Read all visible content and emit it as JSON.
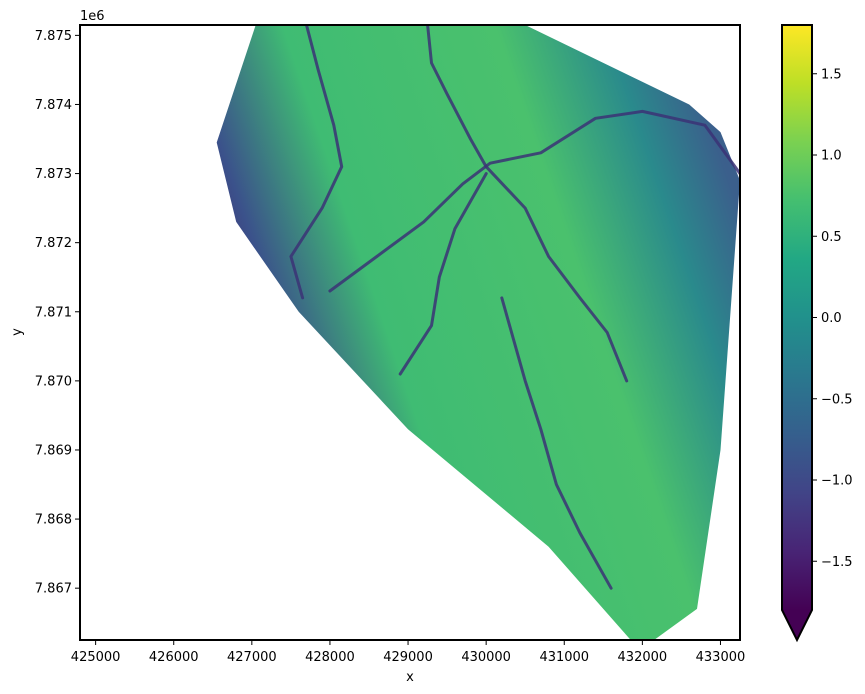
{
  "chart_data": {
    "type": "heatmap",
    "title": "",
    "xlabel": "x",
    "ylabel": "y",
    "y_offset_label": "1e6",
    "xlim": [
      424800,
      433250
    ],
    "ylim": [
      7866250,
      7875150
    ],
    "x_ticks": [
      425000,
      426000,
      427000,
      428000,
      429000,
      430000,
      431000,
      432000,
      433000
    ],
    "x_tick_labels": [
      "425000",
      "426000",
      "427000",
      "428000",
      "429000",
      "430000",
      "431000",
      "432000",
      "433000"
    ],
    "y_ticks": [
      7867000,
      7868000,
      7869000,
      7870000,
      7871000,
      7872000,
      7873000,
      7874000,
      7875000
    ],
    "y_tick_labels": [
      "7.867",
      "7.868",
      "7.869",
      "7.870",
      "7.871",
      "7.872",
      "7.873",
      "7.874",
      "7.875"
    ],
    "colorbar": {
      "colormap": "viridis",
      "extend": "min",
      "vmin": -1.8,
      "vmax": 1.8,
      "ticks": [
        -1.5,
        -1.0,
        -0.5,
        0.0,
        0.5,
        1.0,
        1.5
      ],
      "tick_labels": [
        "−1.5",
        "−1.0",
        "−0.5",
        "0.0",
        "0.5",
        "1.0",
        "1.5"
      ]
    },
    "data_footprint": [
      [
        427050,
        7875150
      ],
      [
        426550,
        7873450
      ],
      [
        426800,
        7872300
      ],
      [
        427600,
        7871000
      ],
      [
        429000,
        7869300
      ],
      [
        430800,
        7867600
      ],
      [
        431850,
        7866250
      ],
      [
        432150,
        7866250
      ],
      [
        432700,
        7866700
      ],
      [
        433000,
        7869000
      ],
      [
        433250,
        7872900
      ],
      [
        433000,
        7873600
      ],
      [
        432600,
        7874000
      ],
      [
        430500,
        7875150
      ]
    ],
    "channels": [
      [
        [
          427700,
          7875150
        ],
        [
          427850,
          7874500
        ],
        [
          428050,
          7873700
        ],
        [
          428150,
          7873100
        ],
        [
          427900,
          7872500
        ],
        [
          427500,
          7871800
        ],
        [
          427650,
          7871200
        ]
      ],
      [
        [
          429250,
          7875150
        ],
        [
          429300,
          7874600
        ],
        [
          429500,
          7874150
        ],
        [
          429800,
          7873500
        ],
        [
          430000,
          7873100
        ],
        [
          430500,
          7872500
        ],
        [
          430800,
          7871800
        ],
        [
          431200,
          7871200
        ],
        [
          431550,
          7870700
        ],
        [
          431800,
          7870000
        ]
      ],
      [
        [
          428000,
          7871300
        ],
        [
          428600,
          7871800
        ],
        [
          429200,
          7872300
        ],
        [
          429700,
          7872850
        ],
        [
          430050,
          7873150
        ],
        [
          430700,
          7873300
        ],
        [
          431400,
          7873800
        ],
        [
          432000,
          7873900
        ],
        [
          432800,
          7873700
        ],
        [
          433250,
          7873000
        ]
      ],
      [
        [
          430200,
          7871200
        ],
        [
          430350,
          7870600
        ],
        [
          430500,
          7870000
        ],
        [
          430700,
          7869300
        ],
        [
          430900,
          7868500
        ],
        [
          431200,
          7867800
        ],
        [
          431600,
          7867000
        ]
      ],
      [
        [
          430000,
          7873000
        ],
        [
          429600,
          7872200
        ],
        [
          429400,
          7871500
        ],
        [
          429300,
          7870800
        ],
        [
          428900,
          7870100
        ]
      ]
    ]
  }
}
